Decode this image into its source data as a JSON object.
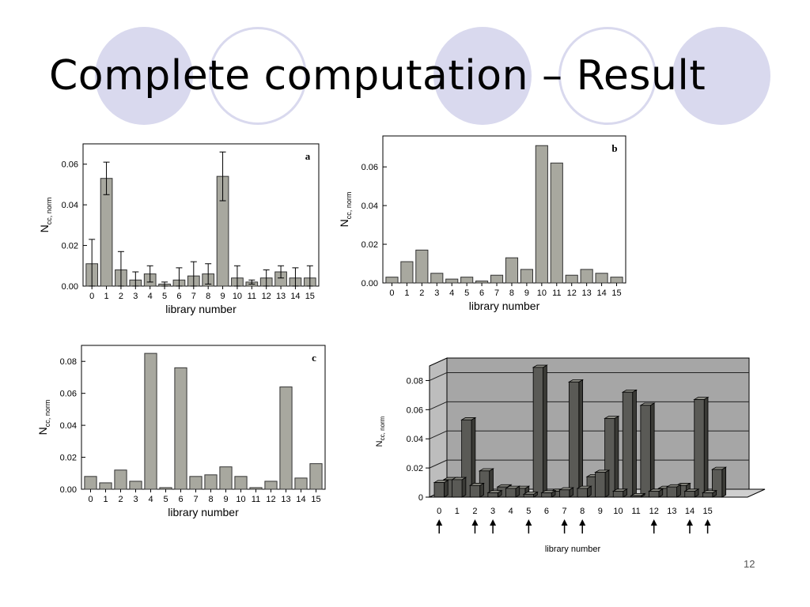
{
  "slide": {
    "title": "Complete computation – Result",
    "page_number": "12"
  },
  "colors": {
    "decor_circle": "#d9d9ee",
    "bar_fill": "#a8a89f",
    "bar3d_front": "#5a5a56",
    "bar3d_side": "#3a3a36",
    "bar3d_top": "#8e8e86",
    "wall": "#a6a6a6"
  },
  "chart_data": [
    {
      "type": "bar",
      "panel_label": "a",
      "xlabel": "library number",
      "ylabel": "N",
      "ylabel_sub": "cc, norm",
      "categories": [
        "0",
        "1",
        "2",
        "3",
        "4",
        "5",
        "6",
        "7",
        "8",
        "9",
        "10",
        "11",
        "12",
        "13",
        "14",
        "15"
      ],
      "values": [
        0.011,
        0.053,
        0.008,
        0.003,
        0.006,
        0.001,
        0.003,
        0.005,
        0.006,
        0.054,
        0.004,
        0.002,
        0.004,
        0.007,
        0.004,
        0.004
      ],
      "errors": [
        0.012,
        0.008,
        0.009,
        0.004,
        0.004,
        0.001,
        0.006,
        0.007,
        0.005,
        0.012,
        0.006,
        0.001,
        0.004,
        0.003,
        0.005,
        0.006
      ],
      "ylim": [
        0,
        0.07
      ],
      "yticks": [
        "0.00",
        "0.02",
        "0.04",
        "0.06"
      ],
      "ytick_values": [
        0,
        0.02,
        0.04,
        0.06
      ]
    },
    {
      "type": "bar",
      "panel_label": "b",
      "xlabel": "library number",
      "ylabel": "N",
      "ylabel_sub": "cc, norm",
      "categories": [
        "0",
        "1",
        "2",
        "3",
        "4",
        "5",
        "6",
        "7",
        "8",
        "9",
        "10",
        "11",
        "12",
        "13",
        "14",
        "15"
      ],
      "values": [
        0.003,
        0.011,
        0.017,
        0.005,
        0.002,
        0.003,
        0.001,
        0.004,
        0.013,
        0.007,
        0.071,
        0.062,
        0.004,
        0.007,
        0.005,
        0.003
      ],
      "ylim": [
        0,
        0.076
      ],
      "yticks": [
        "0.00",
        "0.02",
        "0.04",
        "0.06"
      ],
      "ytick_values": [
        0,
        0.02,
        0.04,
        0.06
      ]
    },
    {
      "type": "bar",
      "panel_label": "c",
      "xlabel": "library number",
      "ylabel": "N",
      "ylabel_sub": "cc, norm",
      "categories": [
        "0",
        "1",
        "2",
        "3",
        "4",
        "5",
        "6",
        "7",
        "8",
        "9",
        "10",
        "11",
        "12",
        "13",
        "14",
        "15"
      ],
      "values": [
        0.008,
        0.004,
        0.012,
        0.005,
        0.085,
        0.001,
        0.076,
        0.008,
        0.009,
        0.014,
        0.008,
        0.001,
        0.005,
        0.064,
        0.007,
        0.016
      ],
      "ylim": [
        0,
        0.09
      ],
      "yticks": [
        "0.00",
        "0.02",
        "0.04",
        "0.06",
        "0.08"
      ],
      "ytick_values": [
        0,
        0.02,
        0.04,
        0.06,
        0.08
      ]
    },
    {
      "type": "bar",
      "style": "3d",
      "xlabel": "library number",
      "ylabel": "N",
      "ylabel_sub": "cc, norm",
      "categories": [
        "0",
        "1",
        "2",
        "3",
        "4",
        "5",
        "6",
        "7",
        "8",
        "9",
        "10",
        "11",
        "12",
        "13",
        "14",
        "15"
      ],
      "back_values": [
        0.012,
        0.053,
        0.018,
        0.007,
        0.006,
        0.089,
        0.004,
        0.079,
        0.014,
        0.054,
        0.072,
        0.063,
        0.006,
        0.008,
        0.067,
        0.019
      ],
      "front_values": [
        0.01,
        0.012,
        0.008,
        0.003,
        0.006,
        0.002,
        0.003,
        0.005,
        0.006,
        0.017,
        0.004,
        0.001,
        0.004,
        0.007,
        0.004,
        0.003
      ],
      "ylim": [
        0,
        0.09
      ],
      "yticks": [
        "0",
        "0.02",
        "0.04",
        "0.06",
        "0.08"
      ],
      "ytick_values": [
        0,
        0.02,
        0.04,
        0.06,
        0.08
      ],
      "arrow_categories": [
        "0",
        "2",
        "3",
        "5",
        "7",
        "8",
        "12",
        "14",
        "15"
      ]
    }
  ]
}
